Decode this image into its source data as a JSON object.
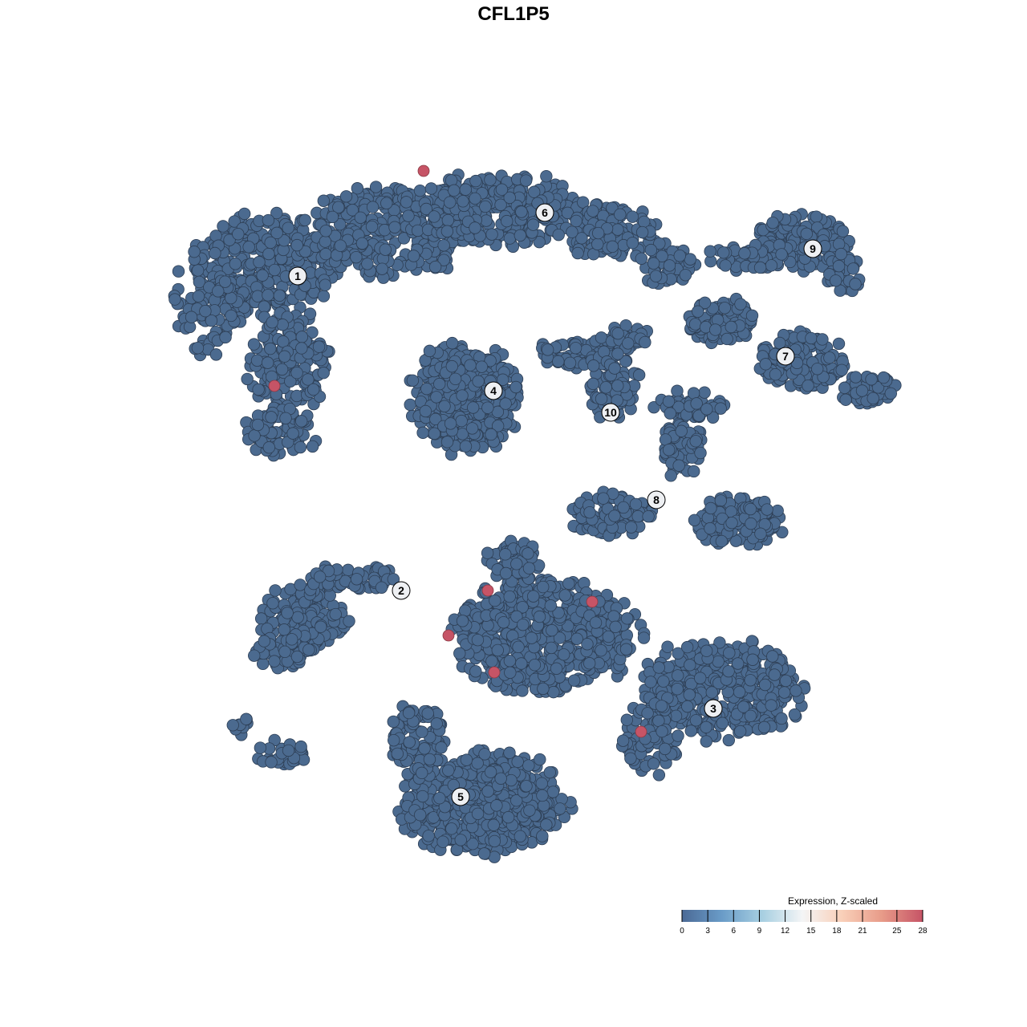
{
  "chart_data": {
    "type": "scatter",
    "title": "CFL1P5",
    "xlabel": "",
    "ylabel": "",
    "xlim": [
      -47,
      47
    ],
    "ylim": [
      -45,
      45
    ],
    "axes_visible": false,
    "grid": false,
    "point_color_default": "#4b6a8f",
    "point_stroke": "#2e3f55",
    "cluster_labels": [
      {
        "label": "1",
        "x": -29.4,
        "y": 29.6
      },
      {
        "label": "6",
        "x": 1.4,
        "y": 37.5
      },
      {
        "label": "9",
        "x": 34.8,
        "y": 33.0
      },
      {
        "label": "4",
        "x": -5.0,
        "y": 15.3
      },
      {
        "label": "10",
        "x": 9.6,
        "y": 12.6
      },
      {
        "label": "7",
        "x": 31.4,
        "y": 19.6
      },
      {
        "label": "8",
        "x": 15.3,
        "y": 1.7
      },
      {
        "label": "2",
        "x": -16.5,
        "y": -9.6
      },
      {
        "label": "3",
        "x": 22.4,
        "y": -24.3
      },
      {
        "label": "5",
        "x": -9.1,
        "y": -35.3
      }
    ],
    "high_expression_points": [
      {
        "x": -13.7,
        "y": 42.7,
        "value": 28
      },
      {
        "x": -32.3,
        "y": 15.9,
        "value": 28
      },
      {
        "x": -5.7,
        "y": -9.6,
        "value": 28
      },
      {
        "x": 7.3,
        "y": -11.0,
        "value": 28
      },
      {
        "x": -10.6,
        "y": -15.2,
        "value": 28
      },
      {
        "x": -4.9,
        "y": -19.8,
        "value": 28
      },
      {
        "x": 13.4,
        "y": -27.2,
        "value": 28
      }
    ],
    "legend": {
      "title": "Expression, Z-scaled",
      "placement": "bottom-right",
      "range": [
        0,
        28
      ],
      "ticks": [
        0,
        3,
        6,
        9,
        12,
        15,
        18,
        21,
        25,
        28
      ],
      "tick_labels": [
        "0",
        "3",
        "6",
        "9",
        "12",
        "15",
        "18",
        "21",
        "25",
        "28"
      ],
      "colors": [
        "#4b6a96",
        "#6a9cc8",
        "#a7cfe1",
        "#f4f5f6",
        "#f9cfb8",
        "#e79a88",
        "#c65466"
      ]
    }
  }
}
